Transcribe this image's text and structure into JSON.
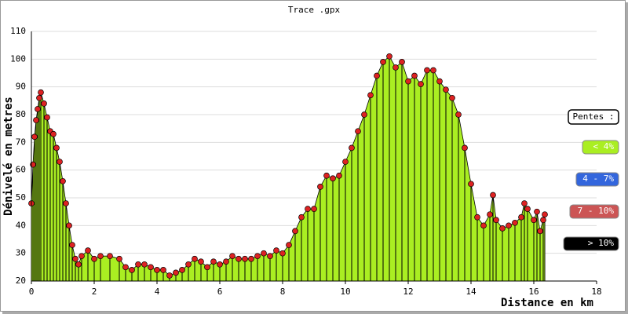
{
  "chart_data": {
    "type": "area",
    "title": "Trace .gpx",
    "xlabel": "Distance en km",
    "ylabel": "Dénivelé en metres",
    "x": [
      0,
      0.05,
      0.1,
      0.15,
      0.2,
      0.25,
      0.3,
      0.4,
      0.5,
      0.6,
      0.7,
      0.8,
      0.9,
      1.0,
      1.1,
      1.2,
      1.3,
      1.4,
      1.5,
      1.6,
      1.8,
      2.0,
      2.2,
      2.5,
      2.8,
      3.0,
      3.2,
      3.4,
      3.6,
      3.8,
      4.0,
      4.2,
      4.4,
      4.6,
      4.8,
      5.0,
      5.2,
      5.4,
      5.6,
      5.8,
      6.0,
      6.2,
      6.4,
      6.6,
      6.8,
      7.0,
      7.2,
      7.4,
      7.6,
      7.8,
      8.0,
      8.2,
      8.4,
      8.6,
      8.8,
      9.0,
      9.2,
      9.4,
      9.6,
      9.8,
      10.0,
      10.2,
      10.4,
      10.6,
      10.8,
      11.0,
      11.2,
      11.4,
      11.6,
      11.8,
      12.0,
      12.2,
      12.4,
      12.6,
      12.8,
      13.0,
      13.2,
      13.4,
      13.6,
      13.8,
      14.0,
      14.2,
      14.4,
      14.6,
      14.7,
      14.8,
      15.0,
      15.2,
      15.4,
      15.6,
      15.7,
      15.8,
      16.0,
      16.1,
      16.2,
      16.3,
      16.35
    ],
    "values": [
      48,
      62,
      72,
      78,
      82,
      86,
      88,
      84,
      79,
      74,
      73,
      68,
      63,
      56,
      48,
      40,
      33,
      28,
      26,
      29,
      31,
      28,
      29,
      29,
      28,
      25,
      24,
      26,
      26,
      25,
      24,
      24,
      22,
      23,
      24,
      26,
      28,
      27,
      25,
      27,
      26,
      27,
      29,
      28,
      28,
      28,
      29,
      30,
      29,
      31,
      30,
      33,
      38,
      43,
      46,
      46,
      54,
      58,
      57,
      58,
      63,
      68,
      74,
      80,
      87,
      94,
      99,
      101,
      97,
      99,
      92,
      94,
      91,
      96,
      96,
      92,
      89,
      86,
      80,
      68,
      55,
      43,
      40,
      44,
      51,
      42,
      39,
      40,
      41,
      43,
      48,
      46,
      42,
      45,
      38,
      42,
      44
    ],
    "fill_color": "#aaee22",
    "point_color": "#dd2222",
    "xlim": [
      0,
      18
    ],
    "xticks": [
      0,
      2,
      4,
      6,
      8,
      10,
      12,
      14,
      16,
      18
    ],
    "ylim": [
      20,
      110
    ],
    "yticks": [
      20,
      30,
      40,
      50,
      60,
      70,
      80,
      90,
      100,
      110
    ],
    "grid": true,
    "legend_title": "Pentes :",
    "legend": [
      {
        "label": "< 4%",
        "color": "#aaee22"
      },
      {
        "label": "4 - 7%",
        "color": "#3366dd"
      },
      {
        "label": "7 - 10%",
        "color": "#cc5555"
      },
      {
        "label": "> 10%",
        "color": "#000000"
      }
    ]
  }
}
